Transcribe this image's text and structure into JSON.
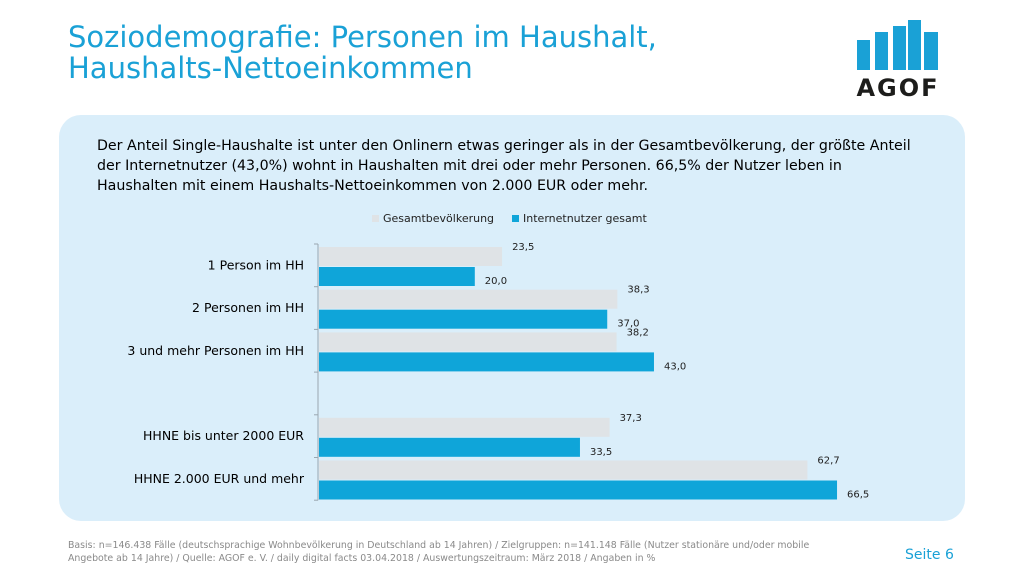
{
  "header": {
    "title_line1": "Soziodemografie: Personen im Haushalt,",
    "title_line2": "Haushalts-Nettoeinkommen",
    "logo_text": "AGOF"
  },
  "intro": "Der Anteil Single-Haushalte ist unter den Onlinern etwas geringer als in der Gesamtbevölkerung, der größte Anteil der Internetnutzer (43,0%) wohnt in Haushalten mit drei oder mehr Personen. 66,5% der Nutzer leben in Haushalten mit einem Haushalts-Nettoeinkommen von 2.000 EUR oder mehr.",
  "colors": {
    "accent": "#1aa1d6",
    "panel": "#daeefa",
    "gesamt": "#dfe3e6",
    "internet": "#0fa5d9"
  },
  "chart_data": {
    "type": "bar",
    "orientation": "horizontal",
    "categories": [
      "1 Person im HH",
      "2 Personen im HH",
      "3 und mehr Personen im HH",
      "",
      "HHNE bis unter 2000 EUR",
      "HHNE 2.000 EUR und mehr"
    ],
    "series": [
      {
        "name": "Gesamtbevölkerung",
        "values": [
          23.5,
          38.3,
          38.2,
          null,
          37.3,
          62.7
        ],
        "labels": [
          "23,5",
          "38,3",
          "38,2",
          "",
          "37,3",
          "62,7"
        ]
      },
      {
        "name": "Internetnutzer gesamt",
        "values": [
          20.0,
          37.0,
          43.0,
          null,
          33.5,
          66.5
        ],
        "labels": [
          "20,0",
          "37,0",
          "43,0",
          "",
          "33,5",
          "66,5"
        ]
      }
    ],
    "xlim": [
      0,
      80
    ],
    "grid": false,
    "legend": "top"
  },
  "footer": {
    "source": "Basis: n=146.438 Fälle (deutschsprachige Wohnbevölkerung in Deutschland ab 14 Jahren) / Zielgruppen: n=141.148 Fälle (Nutzer stationäre und/oder mobile Angebote ab 14 Jahre) / Quelle: AGOF e. V. / daily digital facts 03.04.2018 / Auswertungszeitraum: März 2018 / Angaben in %",
    "page": "Seite 6"
  }
}
